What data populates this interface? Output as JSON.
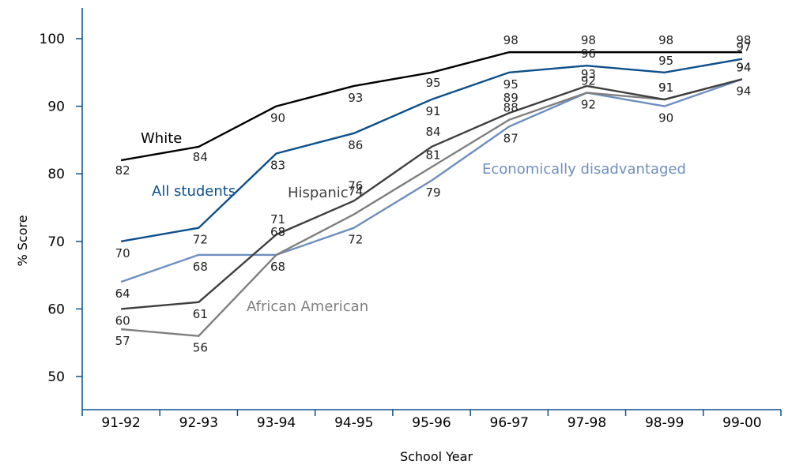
{
  "chart_data": {
    "type": "line",
    "title": "",
    "xlabel": "School Year",
    "ylabel": "% Score",
    "ylim": [
      45,
      105
    ],
    "yticks": [
      50,
      60,
      70,
      80,
      90,
      100
    ],
    "categories": [
      "91-92",
      "92-93",
      "93-94",
      "94-95",
      "95-96",
      "96-97",
      "97-98",
      "98-99",
      "99-00"
    ],
    "grid": false,
    "legend": "inline labels",
    "series": [
      {
        "name": "White",
        "color": "#000000",
        "values": [
          82,
          84,
          90,
          93,
          95,
          98,
          98,
          98,
          98
        ]
      },
      {
        "name": "All students",
        "color": "#0d4f8b",
        "values": [
          70,
          72,
          83,
          86,
          91,
          95,
          96,
          95,
          97
        ]
      },
      {
        "name": "Hispanic",
        "color": "#3f3f3f",
        "values": [
          60,
          61,
          71,
          76,
          84,
          89,
          93,
          91,
          94
        ]
      },
      {
        "name": "African American",
        "color": "#7f7f7f",
        "values": [
          57,
          56,
          68,
          74,
          81,
          88,
          92,
          91,
          94
        ]
      },
      {
        "name": "Economically disadvantaged",
        "color": "#6e8fbf",
        "values": [
          64,
          68,
          68,
          72,
          79,
          87,
          92,
          90,
          94
        ]
      }
    ]
  }
}
